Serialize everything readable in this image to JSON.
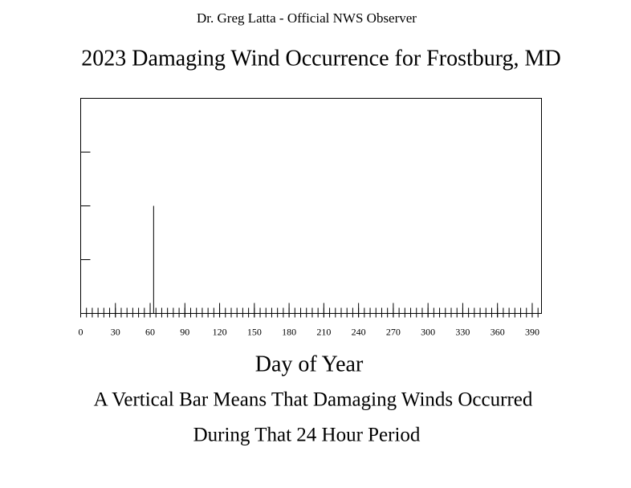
{
  "chart_data": {
    "type": "bar",
    "header": "Dr. Greg Latta - Official NWS Observer",
    "title": "2023 Damaging Wind Occurrence for Frostburg, MD",
    "xlabel": "Day of Year",
    "annotations": [
      "A Vertical Bar Means That Damaging Winds Occurred",
      "During That 24 Hour Period"
    ],
    "x": [
      63
    ],
    "values": [
      2
    ],
    "color": "#000000",
    "xlim": [
      0,
      398
    ],
    "xticks": [
      0,
      30,
      60,
      90,
      120,
      150,
      180,
      210,
      240,
      270,
      300,
      330,
      360,
      390
    ],
    "xminor_step": 5,
    "ylim": [
      0,
      4
    ],
    "yticks": [
      1,
      2,
      3
    ],
    "ytick_labels": false,
    "grid": false
  }
}
